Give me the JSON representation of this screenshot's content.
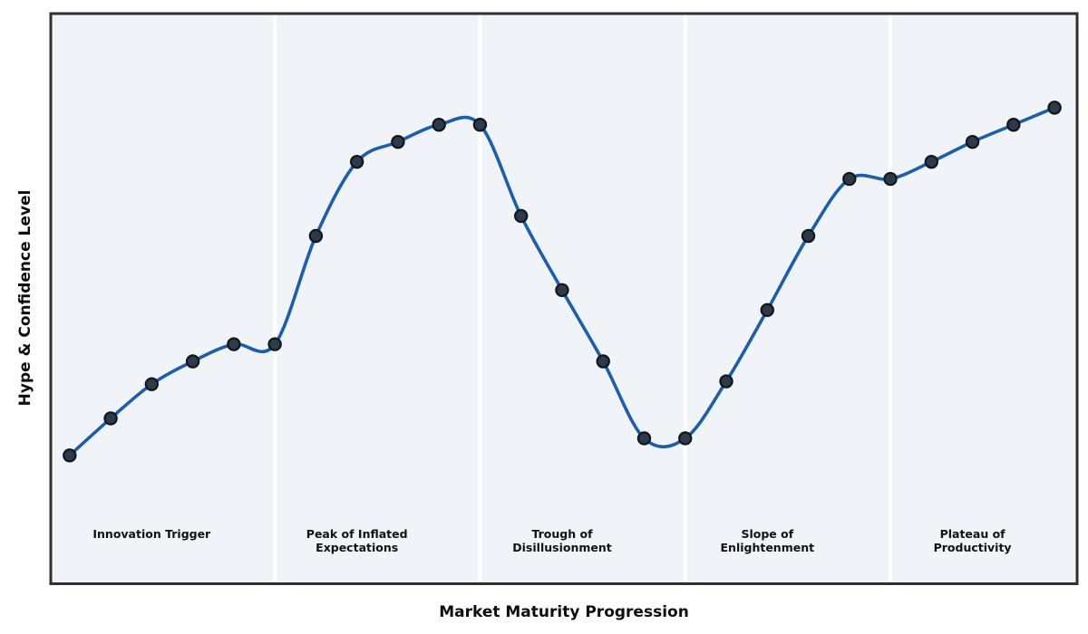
{
  "chart_data": {
    "type": "line",
    "title": "",
    "xlabel": "Market Maturity Progression",
    "ylabel": "Hype & Confidence Level",
    "x": [
      0,
      1,
      2,
      3,
      4,
      5,
      6,
      7,
      8,
      9,
      10,
      11,
      12,
      13,
      14,
      15,
      16,
      17,
      18,
      19,
      20,
      21,
      22,
      23,
      24
    ],
    "series": [
      {
        "name": "Hype & Confidence",
        "values": [
          22.5,
          29,
          35,
          39,
          42,
          42,
          61,
          74,
          77.5,
          80.5,
          80.5,
          64.5,
          51.5,
          39,
          25.5,
          25.5,
          35.5,
          48,
          61,
          71,
          71,
          74,
          77.5,
          80.5,
          83.5
        ]
      }
    ],
    "xlim": [
      -0.46,
      24.55
    ],
    "ylim": [
      0,
      100
    ],
    "grid": false,
    "legend": false,
    "marker": "circle",
    "line_style": "smooth-spline",
    "phases": [
      {
        "label": "Innovation Trigger",
        "start_index": 0,
        "end_index": 5,
        "label_index": 2
      },
      {
        "label": "Peak of Inflated\nExpectations",
        "start_index": 5,
        "end_index": 10,
        "label_index": 7
      },
      {
        "label": "Trough of\nDisillusionment",
        "start_index": 10,
        "end_index": 15,
        "label_index": 12
      },
      {
        "label": "Slope of\nEnlightenment",
        "start_index": 15,
        "end_index": 20,
        "label_index": 17
      },
      {
        "label": "Plateau of\nProductivity",
        "start_index": 20,
        "end_index": 24,
        "label_index": 22
      }
    ],
    "colors": {
      "line": "#1b5eaf",
      "marker_fill": "#2c3a49",
      "marker_edge": "#10161c",
      "plot_background": "#f0f4f8",
      "separator": "#ffffff",
      "border": "#2f2f2f",
      "text": "#111111",
      "figure_background": "#ffffff"
    }
  }
}
